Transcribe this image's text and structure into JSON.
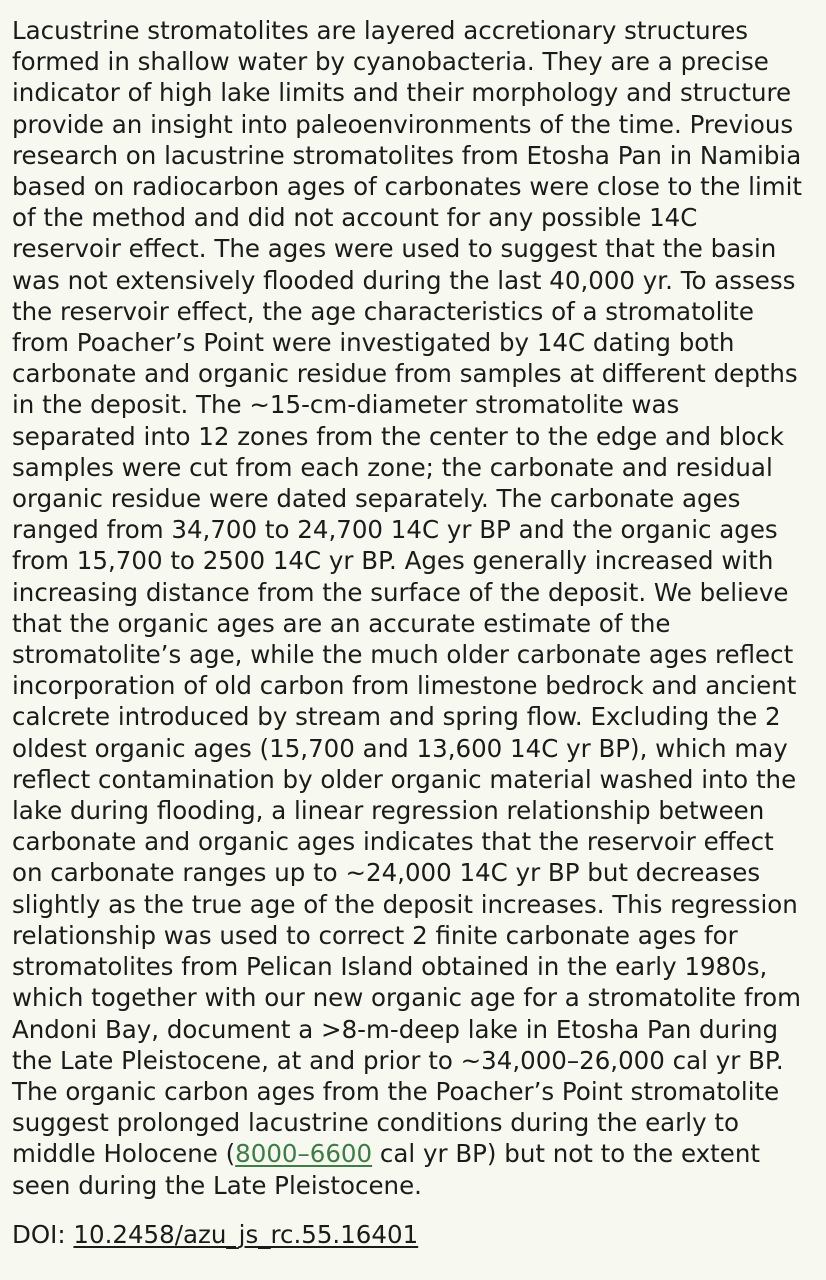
{
  "abstract": {
    "lines": [
      "Lacustrine stromatolites are layered accretionary structures",
      "formed in shallow water by cyanobacteria. They are a precise",
      "indicator of high lake limits and their morphology and structure",
      "provide an insight into paleoenvironments of the time. Previous",
      "research on lacustrine stromatolites from Etosha Pan in Namibia",
      "based on radiocarbon ages of carbonates were close to the limit",
      "of the method and did not account for any possible 14C",
      "reservoir effect. The ages were used to suggest that the basin",
      "was not extensively flooded during the last 40,000 yr. To assess",
      "the reservoir effect, the age characteristics of a stromatolite",
      "from Poacher’s Point were investigated by 14C dating both",
      "carbonate and organic residue from samples at different depths",
      "in the deposit. The ~15-cm-diameter stromatolite was",
      "separated into 12 zones from the center to the edge and block",
      "samples were cut from each zone; the carbonate and residual",
      "organic residue were dated separately. The carbonate ages",
      "ranged from 34,700 to 24,700 14C yr BP and the organic ages",
      "from 15,700 to 2500 14C yr BP. Ages generally increased with",
      "increasing distance from the surface of the deposit. We believe",
      "that the organic ages are an accurate estimate of the",
      "stromatolite’s age, while the much older carbonate ages reflect",
      "incorporation of old carbon from limestone bedrock and ancient",
      "calcrete introduced by stream and spring flow. Excluding the 2",
      "oldest organic ages (15,700 and 13,600 14C yr BP), which may",
      "reflect contamination by older organic material washed into the",
      "lake during flooding, a linear regression relationship between",
      "carbonate and organic ages indicates that the reservoir effect",
      "on carbonate ranges up to ~24,000 14C yr BP but decreases",
      "slightly as the true age of the deposit increases. This regression",
      "relationship was used to correct 2 finite carbonate ages for",
      "stromatolites from Pelican Island obtained in the early 1980s,",
      "which together with our new organic age for a stromatolite from",
      "Andoni Bay, document a >8-m-deep lake in Etosha Pan during",
      "the Late Pleistocene, at and prior to ~34,000–26,000 cal yr BP.",
      "The organic carbon ages from the Poacher’s Point stromatolite",
      "suggest prolonged lacustrine conditions during the early to"
    ],
    "line37_before": "middle Holocene (",
    "line37_link": "8000–6600",
    "line37_after": " cal yr BP) but not to the extent",
    "line38": "seen during the Late Pleistocene."
  },
  "doi": {
    "label": "DOI: ",
    "link": "10.2458/azu_js_rc.55.16401"
  },
  "colors": {
    "background": "#f7f8ef",
    "text": "#1b1b1b",
    "link_green": "#3e7b46"
  }
}
